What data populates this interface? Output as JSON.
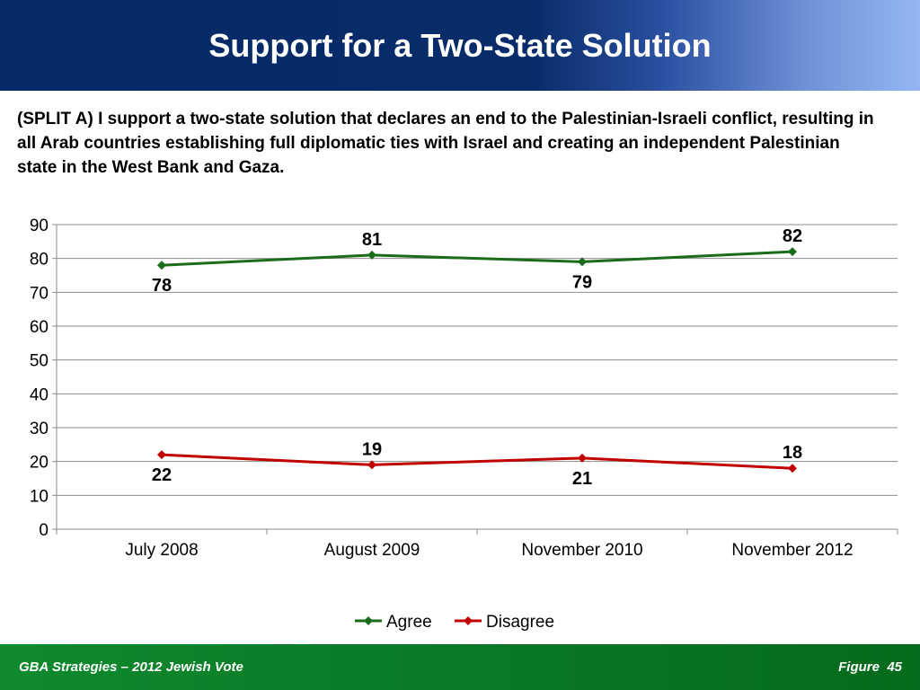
{
  "slide": {
    "title": "Support for a Two-State Solution",
    "question": "(SPLIT A) I support a two-state solution that declares an end to the Palestinian-Israeli conflict, resulting in all Arab countries establishing full diplomatic ties with Israel and creating an independent Palestinian state in the West Bank and Gaza."
  },
  "footer": {
    "source": "GBA Strategies – 2012 Jewish Vote",
    "figure_label": "Figure",
    "figure_number": "45"
  },
  "chart_data": {
    "type": "line",
    "categories": [
      "July 2008",
      "August 2009",
      "November 2010",
      "November 2012"
    ],
    "series": [
      {
        "name": "Agree",
        "values": [
          78,
          81,
          79,
          82
        ],
        "color": "#1a6b1a"
      },
      {
        "name": "Disagree",
        "values": [
          22,
          19,
          21,
          18
        ],
        "color": "#c00000"
      }
    ],
    "ylim": [
      0,
      90
    ],
    "yticks": [
      0,
      10,
      20,
      30,
      40,
      50,
      60,
      70,
      80,
      90
    ],
    "grid": true,
    "legend": "bottom",
    "data_labels": true
  }
}
